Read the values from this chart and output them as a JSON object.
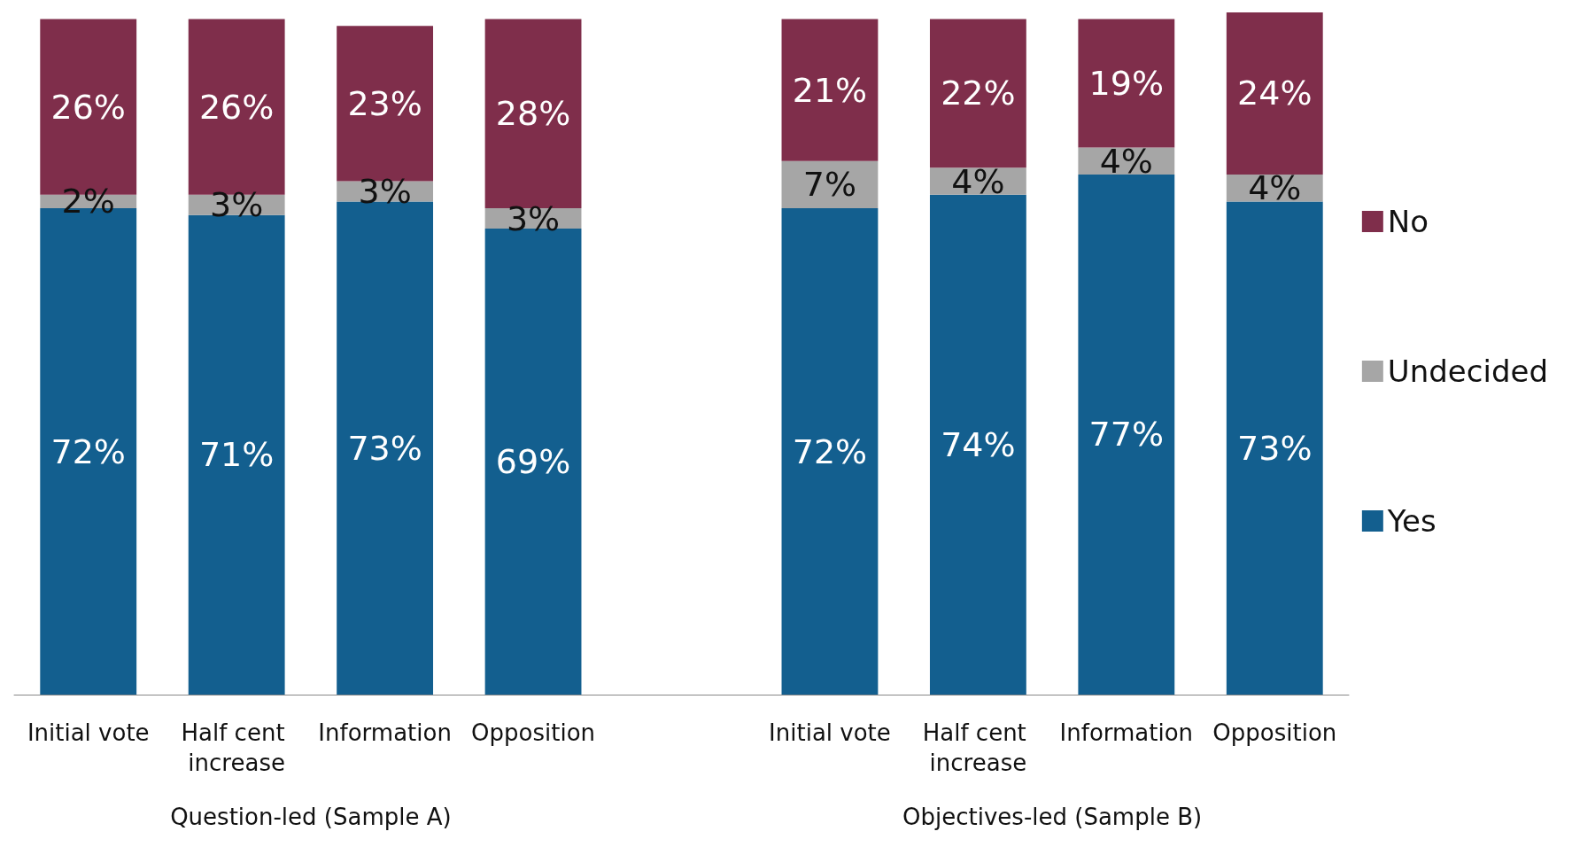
{
  "chart_data": {
    "type": "bar",
    "stacked": true,
    "categories": [
      "Initial vote",
      "Half cent increase",
      "Information",
      "Opposition",
      null,
      "Initial vote",
      "Half cent increase",
      "Information",
      "Opposition"
    ],
    "series": [
      {
        "name": "Yes",
        "color": "#135f8f",
        "values": [
          72,
          71,
          73,
          69,
          null,
          72,
          74,
          77,
          73
        ],
        "value_labels": [
          "72%",
          "71%",
          "73%",
          "69%",
          null,
          "72%",
          "74%",
          "77%",
          "73%"
        ]
      },
      {
        "name": "Undecided",
        "color": "#a6a6a6",
        "values": [
          2,
          3,
          3,
          3,
          null,
          7,
          4,
          4,
          4
        ],
        "value_labels": [
          "2%",
          "3%",
          "3%",
          "3%",
          null,
          "7%",
          "4%",
          "4%",
          "4%"
        ]
      },
      {
        "name": "No",
        "color": "#7f2e4b",
        "values": [
          26,
          26,
          23,
          28,
          null,
          21,
          22,
          19,
          24
        ],
        "value_labels": [
          "26%",
          "26%",
          "23%",
          "28%",
          null,
          "21%",
          "22%",
          "19%",
          "24%"
        ]
      }
    ],
    "legend": "right",
    "annotations": [
      "Question-led (Sample A)",
      "Objectives-led (Sample B)"
    ]
  }
}
